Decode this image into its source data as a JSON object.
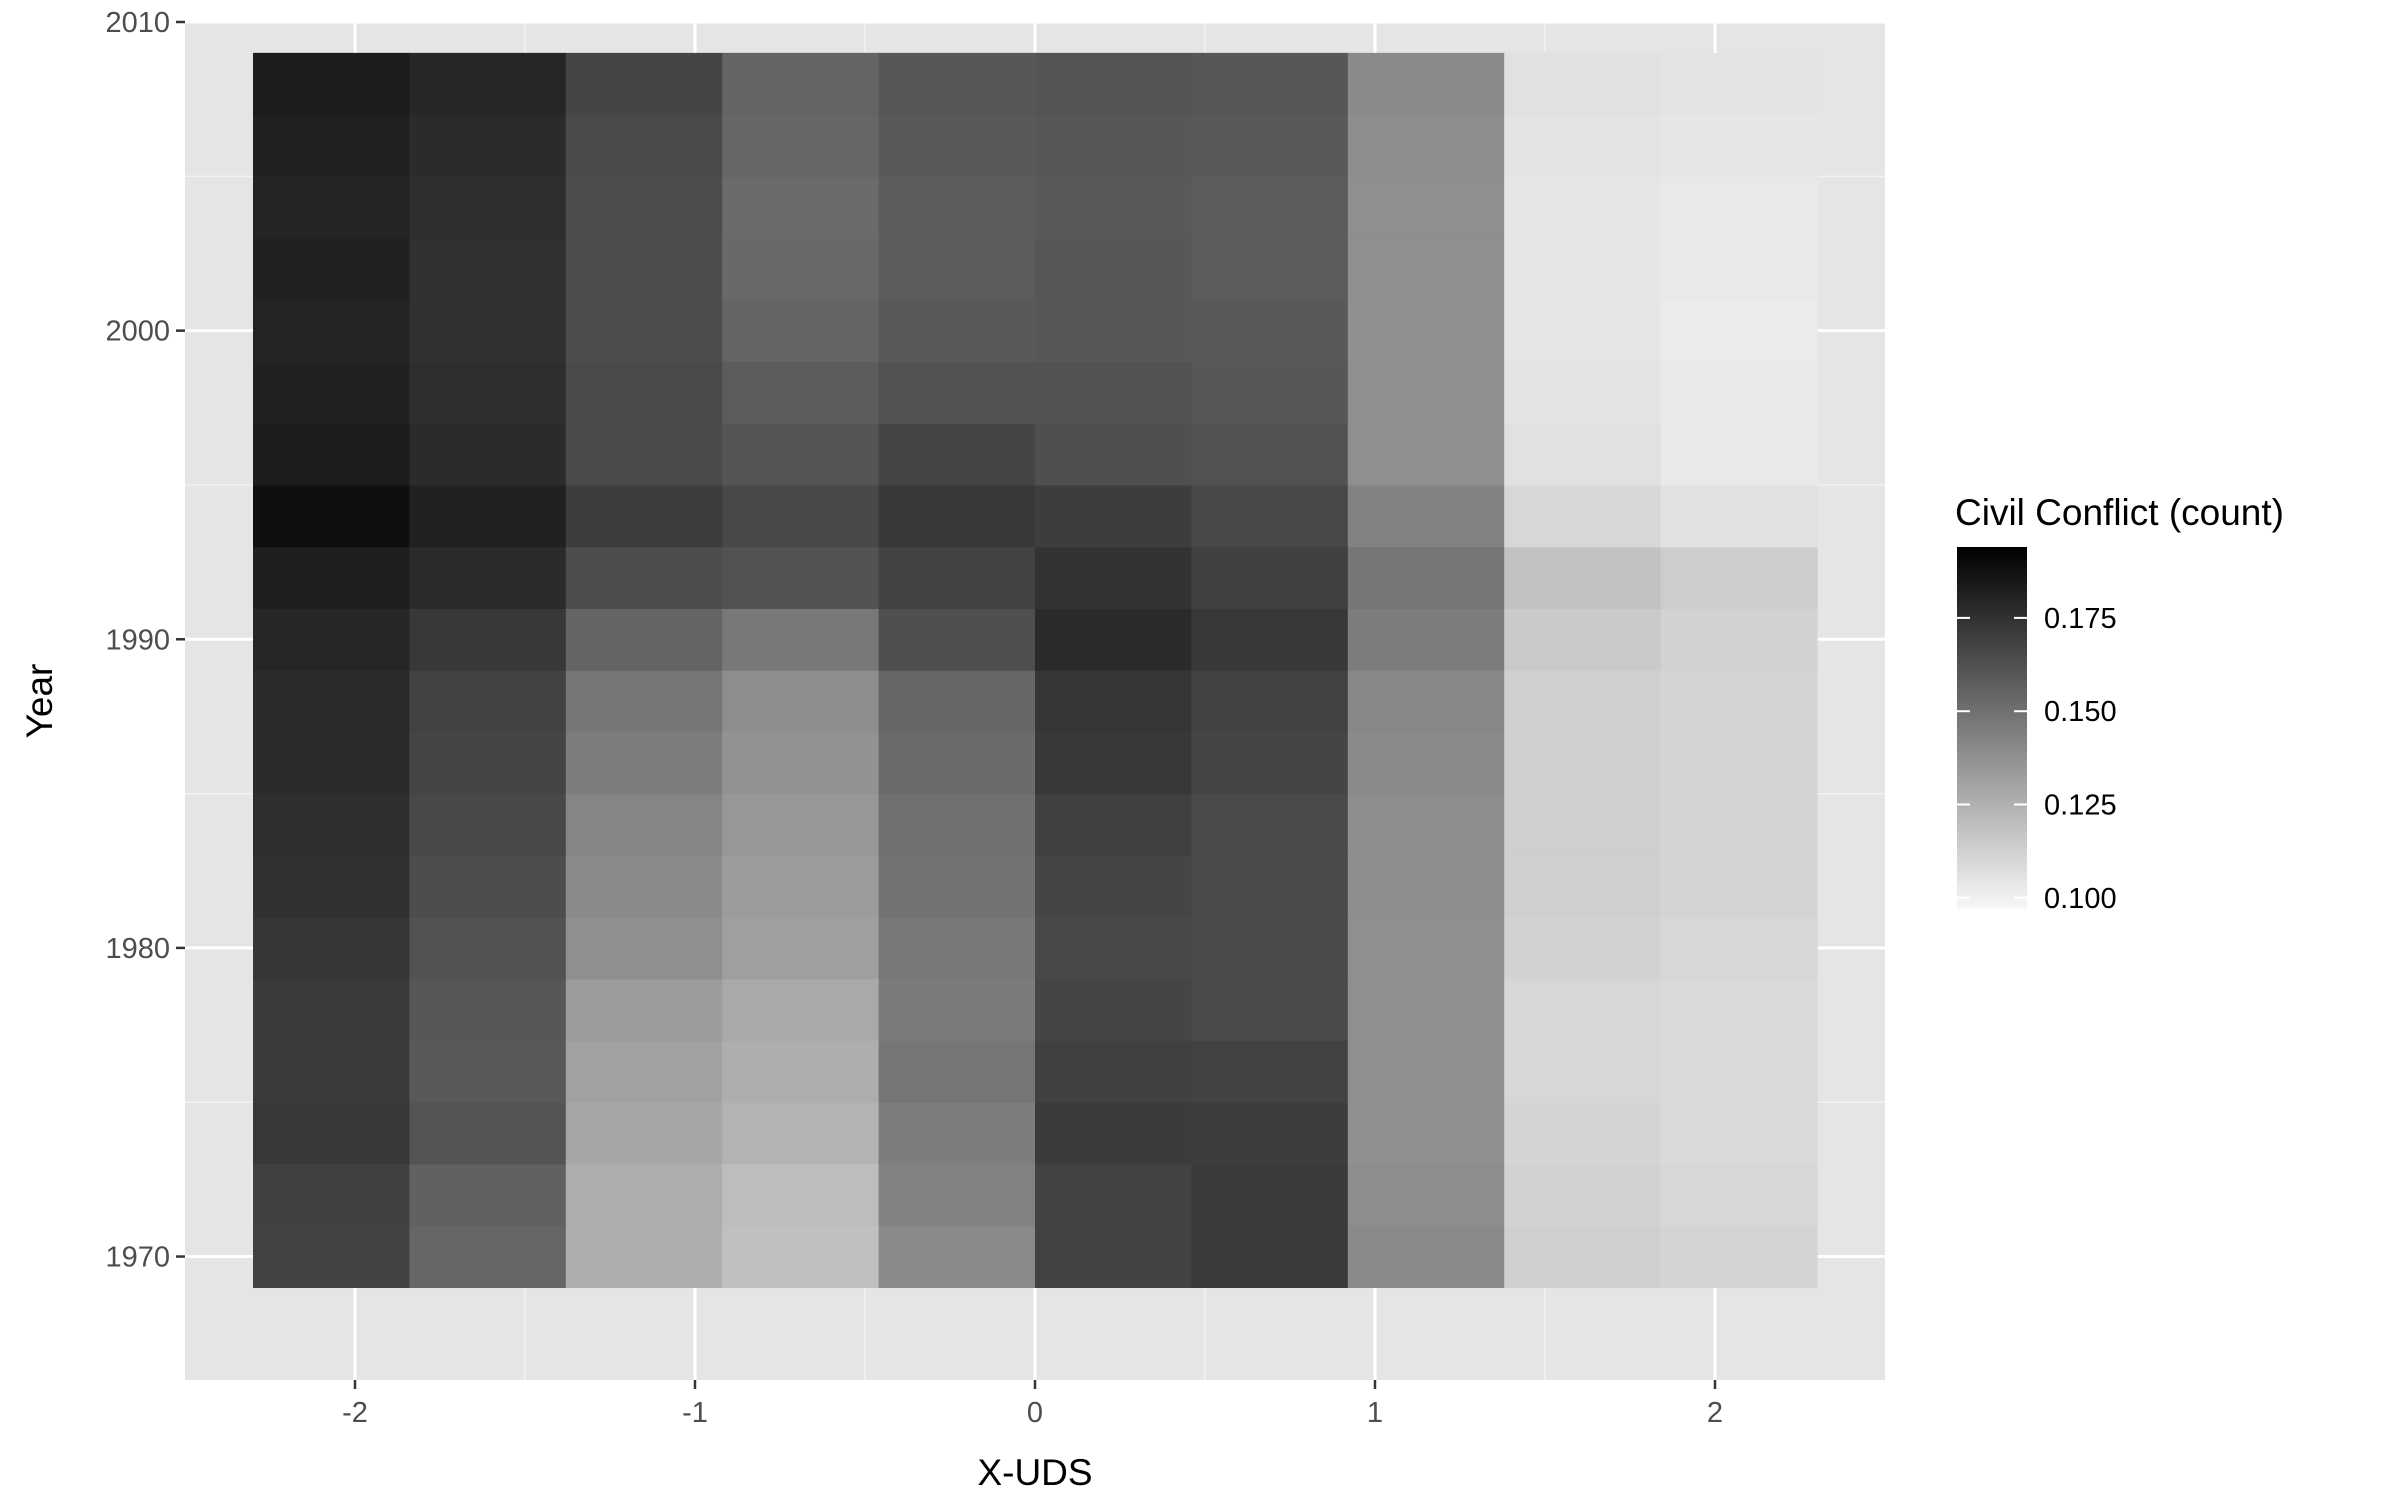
{
  "chart_data": {
    "type": "heatmap",
    "title": "",
    "xlabel": "X-UDS",
    "ylabel": "Year",
    "xlim": [
      -2.5,
      2.5
    ],
    "ylim": [
      1966,
      2010
    ],
    "x_ticks": [
      -2,
      -1,
      0,
      1,
      2
    ],
    "x_tick_labels": [
      "-2",
      "-1",
      "0",
      "1",
      "2"
    ],
    "y_ticks": [
      1970,
      1980,
      1990,
      2000,
      2010
    ],
    "y_tick_labels": [
      "1970",
      "1980",
      "1990",
      "2000",
      "2010"
    ],
    "grid": true,
    "x_centers": [
      -2.07,
      -1.61,
      -1.15,
      -0.69,
      -0.23,
      0.23,
      0.69,
      1.15,
      1.61,
      2.07
    ],
    "x_tile_width": 0.46,
    "years": [
      1970,
      1972,
      1974,
      1976,
      1978,
      1980,
      1982,
      1984,
      1986,
      1988,
      1990,
      1992,
      1994,
      1996,
      1998,
      2000,
      2002,
      2004,
      2006,
      2008
    ],
    "y_tile_height": 2,
    "z": [
      [
        0.168,
        0.154,
        0.126,
        0.119,
        0.14,
        0.168,
        0.171,
        0.14,
        0.113,
        0.111
      ],
      [
        0.169,
        0.156,
        0.126,
        0.12,
        0.143,
        0.168,
        0.171,
        0.139,
        0.112,
        0.11
      ],
      [
        0.172,
        0.161,
        0.129,
        0.124,
        0.145,
        0.171,
        0.17,
        0.138,
        0.111,
        0.109
      ],
      [
        0.171,
        0.159,
        0.131,
        0.126,
        0.148,
        0.169,
        0.168,
        0.138,
        0.11,
        0.109
      ],
      [
        0.171,
        0.16,
        0.133,
        0.128,
        0.146,
        0.167,
        0.165,
        0.138,
        0.11,
        0.109
      ],
      [
        0.173,
        0.162,
        0.138,
        0.132,
        0.147,
        0.166,
        0.165,
        0.138,
        0.112,
        0.11
      ],
      [
        0.175,
        0.164,
        0.14,
        0.133,
        0.149,
        0.167,
        0.165,
        0.139,
        0.113,
        0.111
      ],
      [
        0.176,
        0.166,
        0.142,
        0.135,
        0.15,
        0.169,
        0.165,
        0.139,
        0.113,
        0.111
      ],
      [
        0.177,
        0.167,
        0.145,
        0.137,
        0.152,
        0.172,
        0.167,
        0.14,
        0.113,
        0.111
      ],
      [
        0.177,
        0.168,
        0.148,
        0.139,
        0.154,
        0.173,
        0.168,
        0.141,
        0.113,
        0.111
      ],
      [
        0.179,
        0.172,
        0.155,
        0.147,
        0.163,
        0.177,
        0.172,
        0.145,
        0.115,
        0.112
      ],
      [
        0.182,
        0.177,
        0.164,
        0.162,
        0.168,
        0.174,
        0.169,
        0.148,
        0.118,
        0.114
      ],
      [
        0.188,
        0.181,
        0.17,
        0.166,
        0.172,
        0.17,
        0.166,
        0.143,
        0.11,
        0.106
      ],
      [
        0.183,
        0.177,
        0.165,
        0.161,
        0.167,
        0.163,
        0.162,
        0.138,
        0.106,
        0.103
      ],
      [
        0.181,
        0.176,
        0.165,
        0.158,
        0.162,
        0.162,
        0.16,
        0.138,
        0.105,
        0.103
      ],
      [
        0.18,
        0.175,
        0.164,
        0.155,
        0.159,
        0.16,
        0.159,
        0.138,
        0.104,
        0.102
      ],
      [
        0.181,
        0.175,
        0.164,
        0.153,
        0.158,
        0.16,
        0.158,
        0.138,
        0.104,
        0.103
      ],
      [
        0.18,
        0.176,
        0.164,
        0.152,
        0.158,
        0.159,
        0.158,
        0.138,
        0.104,
        0.103
      ],
      [
        0.181,
        0.177,
        0.165,
        0.154,
        0.159,
        0.16,
        0.159,
        0.139,
        0.105,
        0.104
      ],
      [
        0.183,
        0.179,
        0.167,
        0.155,
        0.16,
        0.161,
        0.16,
        0.14,
        0.106,
        0.105
      ]
    ],
    "legend": {
      "title": "Civil Conflict (count)",
      "position": "right",
      "breaks": [
        0.1,
        0.125,
        0.15,
        0.175
      ],
      "labels": [
        "0.100",
        "0.125",
        "0.150",
        "0.175"
      ],
      "range": [
        0.097,
        0.194
      ],
      "low_color": "#f8f8f8",
      "high_color": "#000000"
    },
    "colors": {
      "panel_background": "#e5e5e5",
      "grid_major": "#ffffff",
      "grid_minor": "#f2f2f2",
      "tick_text": "#4d4d4d",
      "tick_mark": "#333333"
    }
  }
}
